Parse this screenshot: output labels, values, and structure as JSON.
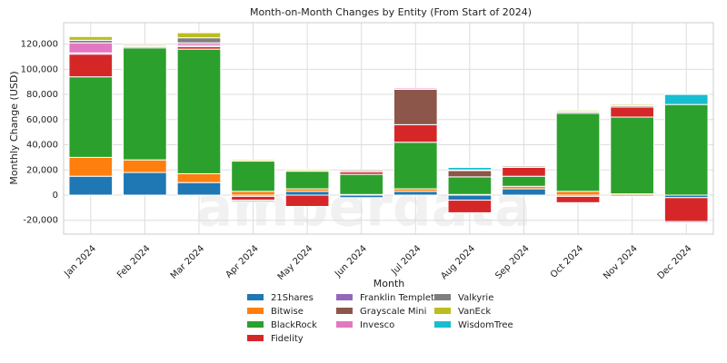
{
  "chart_data": {
    "type": "stacked_bar",
    "title": "Month-on-Month Changes by Entity (From Start of 2024)",
    "x_label": "Month",
    "y_label": "Monthly Change (USD)",
    "watermark": "amberdata",
    "categories": [
      "Jan 2024",
      "Feb 2024",
      "Mar 2024",
      "Apr 2024",
      "May 2024",
      "Jun 2024",
      "Jul 2024",
      "Aug 2024",
      "Sep 2024",
      "Oct 2024",
      "Nov 2024",
      "Dec 2024"
    ],
    "series": [
      {
        "name": "21Shares",
        "color": "#1f77b4",
        "values": [
          15000,
          18000,
          10000,
          -1000,
          3000,
          -2000,
          3000,
          -4000,
          5000,
          -1000,
          -1000,
          -2000
        ]
      },
      {
        "name": "Bitwise",
        "color": "#ff7f0e",
        "values": [
          15000,
          10000,
          7000,
          3000,
          2000,
          500,
          2000,
          500,
          2000,
          3000,
          1000,
          0
        ]
      },
      {
        "name": "BlackRock",
        "color": "#2ca02c",
        "values": [
          64000,
          89000,
          99000,
          24000,
          14000,
          16000,
          37000,
          14000,
          8000,
          62000,
          61000,
          72000
        ]
      },
      {
        "name": "Fidelity",
        "color": "#d62728",
        "values": [
          18000,
          1000,
          2000,
          -3000,
          -9000,
          2000,
          14000,
          -10000,
          7000,
          -5000,
          8000,
          -19000
        ]
      },
      {
        "name": "Franklin Templeton",
        "color": "#9467bd",
        "values": [
          1000,
          0,
          1000,
          0,
          500,
          0,
          0,
          0,
          0,
          0,
          0,
          0
        ]
      },
      {
        "name": "Grayscale Mini",
        "color": "#8c564b",
        "values": [
          0,
          0,
          0,
          -1000,
          0,
          1000,
          28000,
          5000,
          1000,
          1000,
          1000,
          0
        ]
      },
      {
        "name": "Invesco",
        "color": "#e377c2",
        "values": [
          8000,
          500,
          2000,
          0,
          0,
          0,
          1000,
          0,
          0,
          500,
          0,
          -1000
        ]
      },
      {
        "name": "Valkyrie",
        "color": "#7f7f7f",
        "values": [
          2000,
          0,
          4000,
          0,
          0,
          0,
          0,
          0,
          0,
          0,
          0,
          0
        ]
      },
      {
        "name": "VanEck",
        "color": "#bcbd22",
        "values": [
          3000,
          1000,
          4000,
          1000,
          1000,
          0,
          0,
          500,
          500,
          1000,
          1000,
          0
        ]
      },
      {
        "name": "WisdomTree",
        "color": "#17becf",
        "values": [
          0,
          0,
          0,
          0,
          0,
          0,
          0,
          2000,
          0,
          0,
          0,
          8000
        ]
      }
    ],
    "ylim": [
      -31000,
      137000
    ],
    "yticks": [
      {
        "value": -20000,
        "label": "-20,000"
      },
      0,
      {
        "value": 20000,
        "label": "20,000"
      },
      {
        "value": 40000,
        "label": "40,000"
      },
      {
        "value": 60000,
        "label": "60,000"
      },
      {
        "value": 80000,
        "label": "80,000"
      },
      {
        "value": 100000,
        "label": "100,000"
      },
      {
        "value": 120000,
        "label": "120,000"
      }
    ],
    "grid": true,
    "legend": "bottom"
  }
}
